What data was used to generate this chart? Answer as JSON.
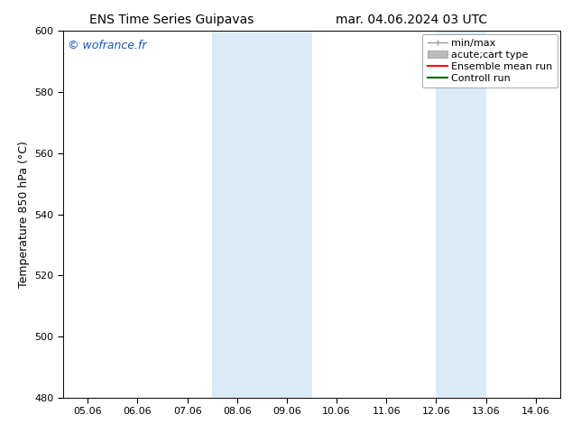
{
  "title_left": "ENS Time Series Guipavas",
  "title_right": "mar. 04.06.2024 03 UTC",
  "ylabel": "Temperature 850 hPa (°C)",
  "ylim": [
    480,
    600
  ],
  "yticks": [
    480,
    500,
    520,
    540,
    560,
    580,
    600
  ],
  "xtick_labels": [
    "05.06",
    "06.06",
    "07.06",
    "08.06",
    "09.06",
    "10.06",
    "11.06",
    "12.06",
    "13.06",
    "14.06"
  ],
  "xlim": [
    0,
    9
  ],
  "bg_color": "#ffffff",
  "plot_bg_color": "#ffffff",
  "shaded_color": "#dbeaf7",
  "shaded_regions": [
    {
      "x_start": 3.0,
      "x_end": 5.0
    },
    {
      "x_start": 7.5,
      "x_end": 8.5
    }
  ],
  "watermark_text": "© wofrance.fr",
  "watermark_color": "#1155cc",
  "legend_labels": [
    "min/max",
    "acute;cart type",
    "Ensemble mean run",
    "Controll run"
  ],
  "legend_colors": [
    "#999999",
    "#bbbbbb",
    "#ff0000",
    "#006600"
  ],
  "title_fontsize": 10,
  "axis_label_fontsize": 9,
  "tick_fontsize": 8,
  "legend_fontsize": 8,
  "watermark_fontsize": 9
}
